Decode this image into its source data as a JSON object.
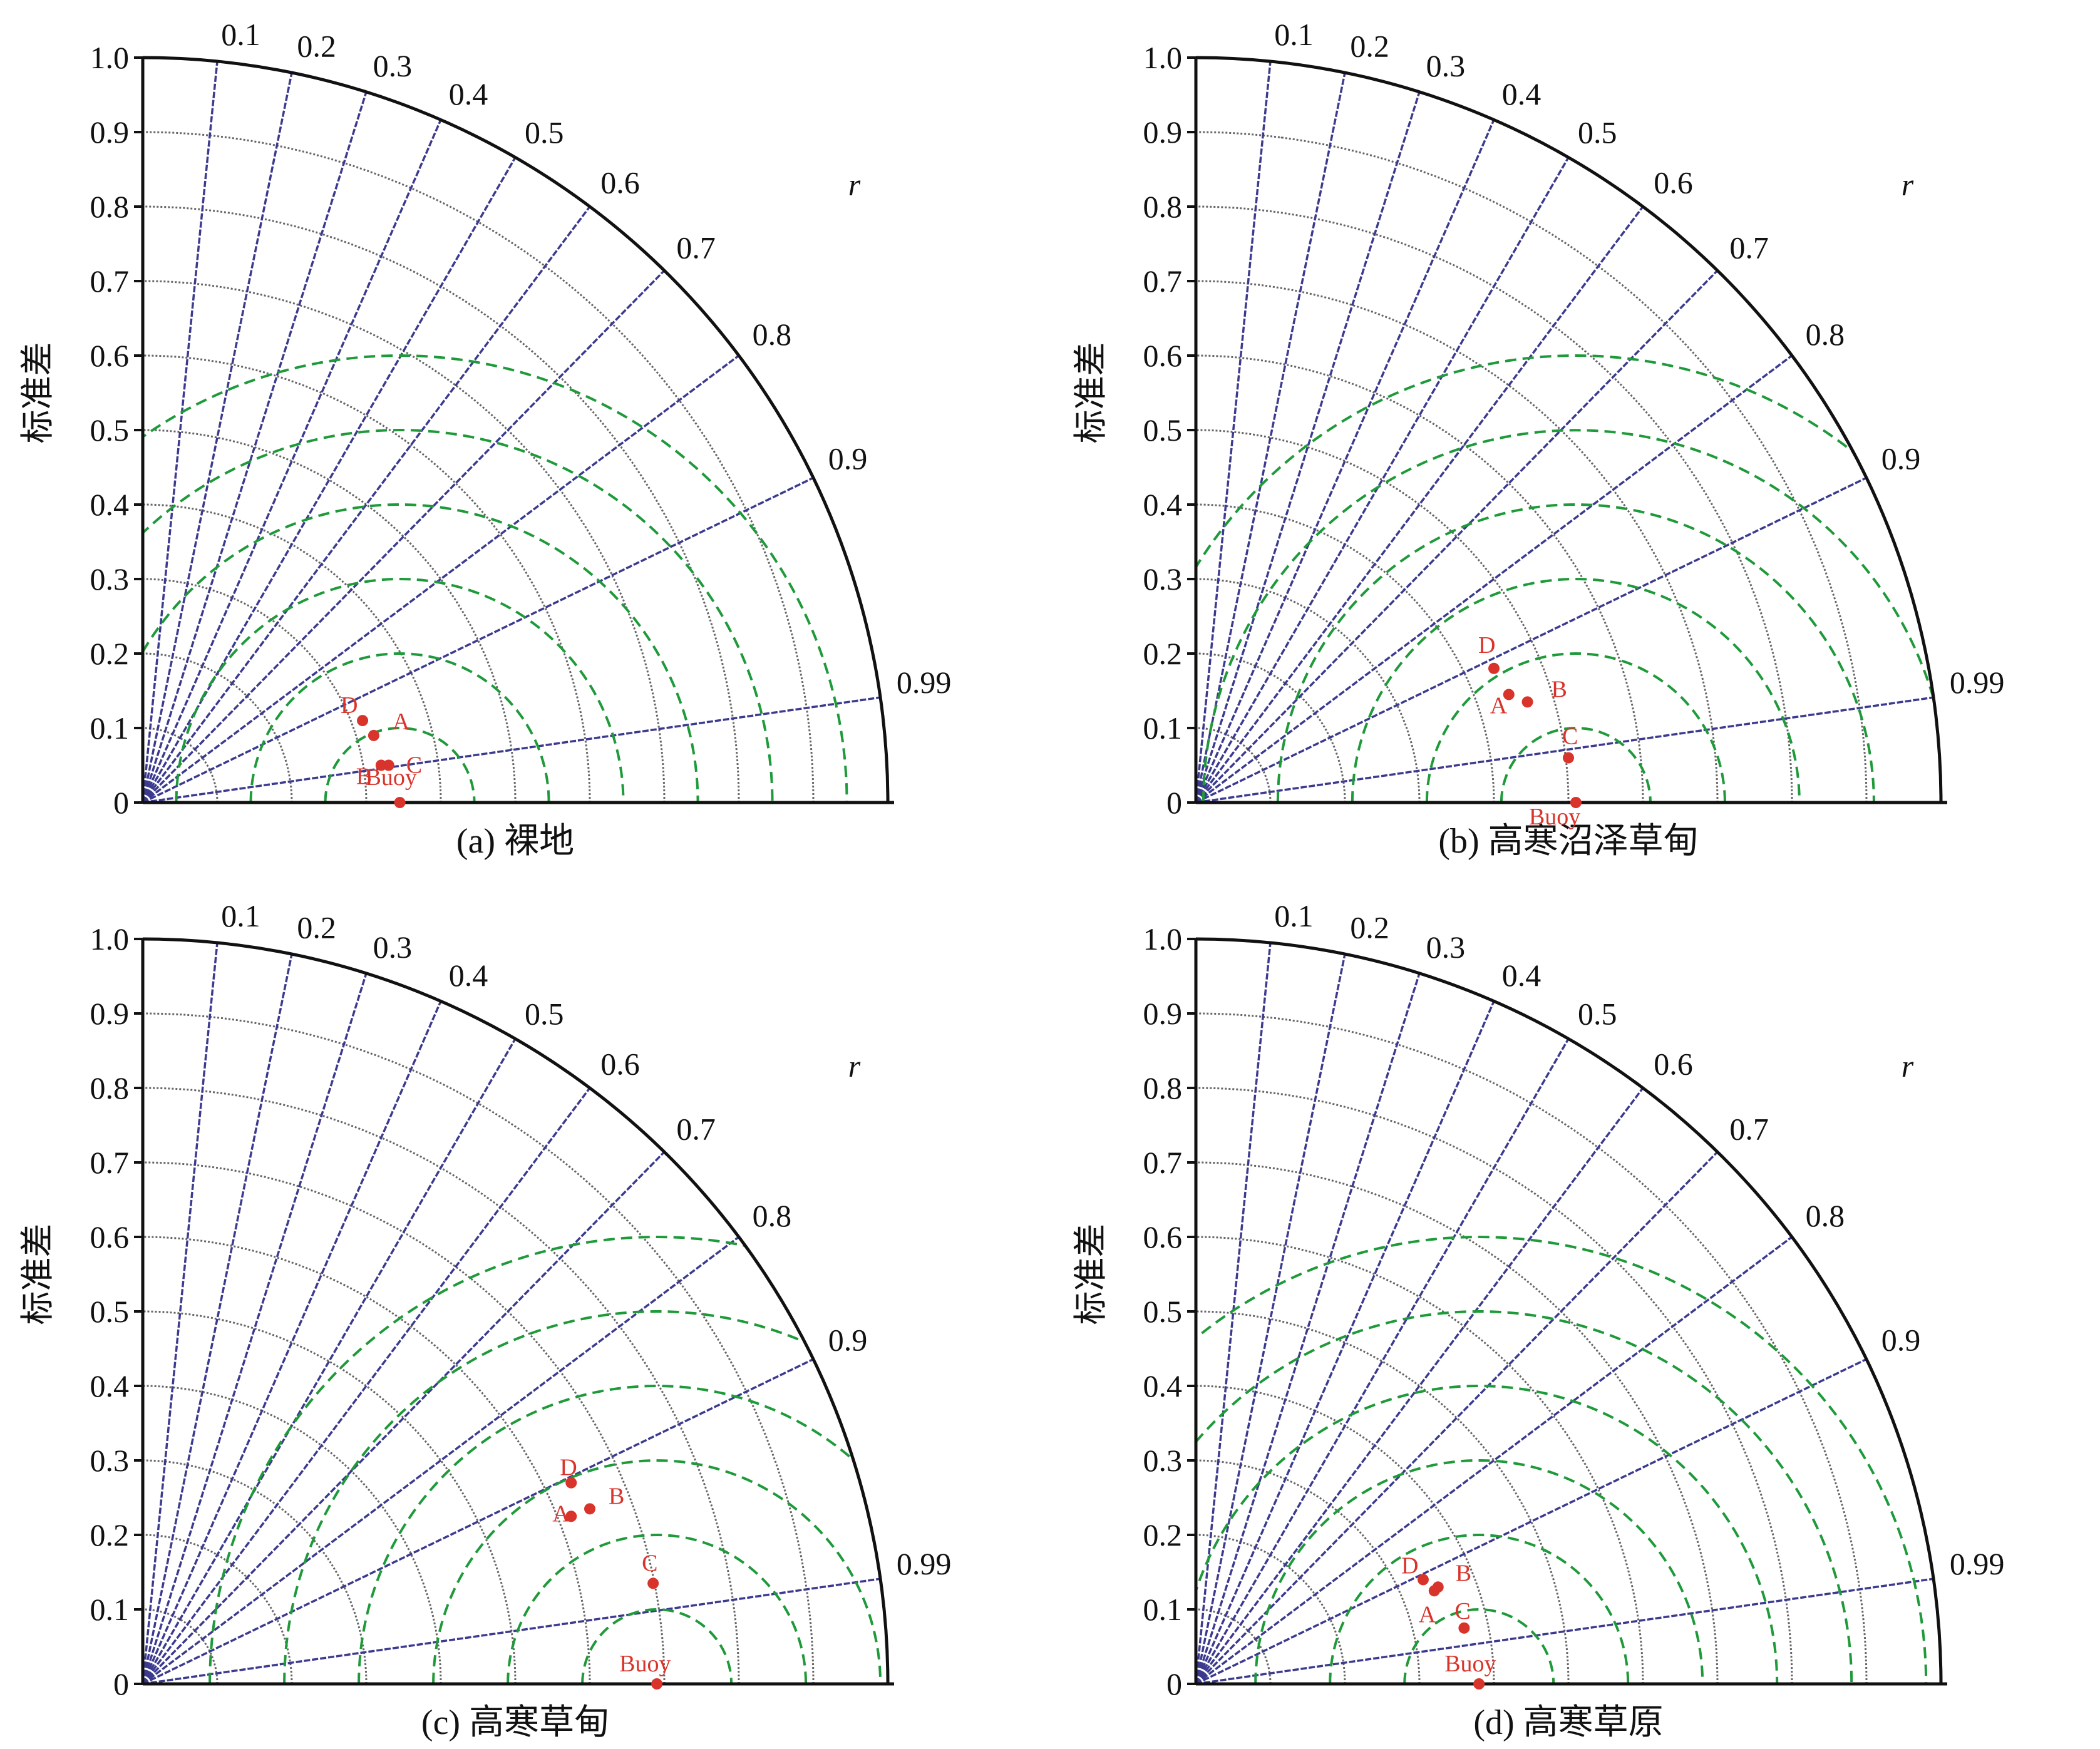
{
  "colors": {
    "point": "#d9342b",
    "corr_line": "#3b3a8f",
    "std_arc": "#666666",
    "rms_arc": "#1f9a3a",
    "axis": "#111111"
  },
  "common": {
    "y_axis_label": "标准差",
    "r_label": "r",
    "std_ticks": [
      "0",
      "0.1",
      "0.2",
      "0.3",
      "0.4",
      "0.5",
      "0.6",
      "0.7",
      "0.8",
      "0.9",
      "1.0"
    ],
    "corr_ticks": [
      "0.1",
      "0.2",
      "0.3",
      "0.4",
      "0.5",
      "0.6",
      "0.7",
      "0.8",
      "0.9",
      "0.99"
    ]
  },
  "chart_data": [
    {
      "type": "scatter",
      "subtype": "taylor-diagram",
      "caption": "(a) 裸地",
      "ylabel": "标准差",
      "std_range": [
        0,
        1.0
      ],
      "rms_arcs": [
        0.1,
        0.2,
        0.3,
        0.4,
        0.5,
        0.6
      ],
      "points": [
        {
          "name": "Buoy",
          "x": 0.345,
          "y": 0.0
        },
        {
          "name": "A",
          "x": 0.31,
          "y": 0.09
        },
        {
          "name": "B",
          "x": 0.32,
          "y": 0.05
        },
        {
          "name": "C",
          "x": 0.33,
          "y": 0.05
        },
        {
          "name": "D",
          "x": 0.295,
          "y": 0.11
        }
      ]
    },
    {
      "type": "scatter",
      "subtype": "taylor-diagram",
      "caption": "(b) 高寒沼泽草甸",
      "ylabel": "标准差",
      "std_range": [
        0,
        1.0
      ],
      "rms_arcs": [
        0.1,
        0.2,
        0.3,
        0.4,
        0.5,
        0.6
      ],
      "points": [
        {
          "name": "Buoy",
          "x": 0.51,
          "y": 0.0
        },
        {
          "name": "A",
          "x": 0.42,
          "y": 0.145
        },
        {
          "name": "B",
          "x": 0.445,
          "y": 0.135
        },
        {
          "name": "C",
          "x": 0.5,
          "y": 0.06
        },
        {
          "name": "D",
          "x": 0.4,
          "y": 0.18
        }
      ]
    },
    {
      "type": "scatter",
      "subtype": "taylor-diagram",
      "caption": "(c) 高寒草甸",
      "ylabel": "标准差",
      "std_range": [
        0,
        1.0
      ],
      "rms_arcs": [
        0.1,
        0.2,
        0.3,
        0.4,
        0.5,
        0.6
      ],
      "points": [
        {
          "name": "Buoy",
          "x": 0.69,
          "y": 0.0
        },
        {
          "name": "A",
          "x": 0.575,
          "y": 0.225
        },
        {
          "name": "B",
          "x": 0.6,
          "y": 0.235
        },
        {
          "name": "C",
          "x": 0.685,
          "y": 0.135
        },
        {
          "name": "D",
          "x": 0.575,
          "y": 0.27
        }
      ]
    },
    {
      "type": "scatter",
      "subtype": "taylor-diagram",
      "caption": "(d) 高寒草原",
      "ylabel": "标准差",
      "std_range": [
        0,
        1.0
      ],
      "rms_arcs": [
        0.1,
        0.2,
        0.3,
        0.4,
        0.5,
        0.6
      ],
      "points": [
        {
          "name": "Buoy",
          "x": 0.38,
          "y": 0.0
        },
        {
          "name": "A",
          "x": 0.32,
          "y": 0.125
        },
        {
          "name": "B",
          "x": 0.325,
          "y": 0.13
        },
        {
          "name": "C",
          "x": 0.36,
          "y": 0.075
        },
        {
          "name": "D",
          "x": 0.305,
          "y": 0.14
        }
      ]
    }
  ]
}
